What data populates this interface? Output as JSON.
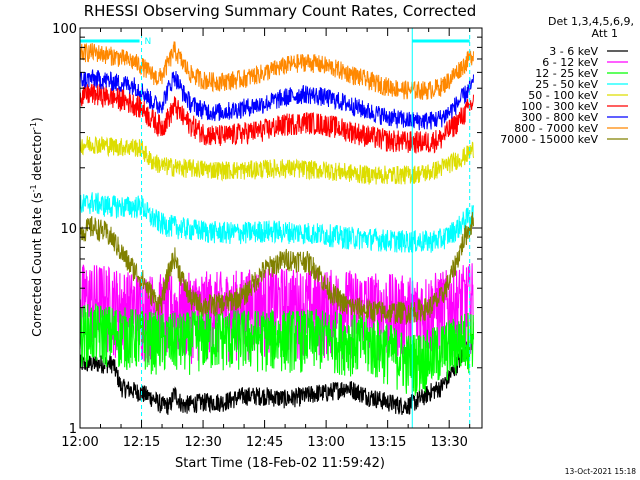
{
  "chart_data": {
    "type": "line",
    "title": "RHESSI Observing Summary Count Rates, Corrected",
    "xlabel": "Start Time (18-Feb-02 11:59:42)",
    "ylabel_main": "Corrected Count Rate (s",
    "ylabel_sup1": "-1",
    "ylabel_mid": " detector",
    "ylabel_sup2": "-1",
    "ylabel_end": ")",
    "yscale": "log",
    "ylim": [
      1,
      100
    ],
    "x_ticks": [
      "12:00",
      "12:15",
      "12:30",
      "12:45",
      "13:00",
      "13:15",
      "13:30"
    ],
    "x_tick_minutes": [
      0,
      15,
      30,
      45,
      60,
      75,
      90
    ],
    "xlim_minutes": [
      0,
      98
    ],
    "y_ticks": [
      "1",
      "10",
      "100"
    ],
    "y_tick_values": [
      1,
      10,
      100
    ],
    "legend_title_1": "Det 1,3,4,5,6,9,",
    "legend_title_2": "Att 1",
    "legend_position": "right",
    "timestamp": "13-Oct-2021 15:18",
    "night_marker": "N",
    "vertical_markers_minutes": [
      15,
      81,
      95
    ],
    "series": [
      {
        "name": "3 - 6 keV",
        "color": "#000000",
        "x": [
          0,
          8,
          10,
          15,
          18,
          20,
          22,
          23,
          25,
          30,
          35,
          40,
          45,
          50,
          55,
          58,
          60,
          65,
          70,
          75,
          78,
          80,
          83,
          85,
          88,
          90,
          92,
          95,
          96
        ],
        "y": [
          2.1,
          2.1,
          1.6,
          1.5,
          1.4,
          1.3,
          1.3,
          1.5,
          1.3,
          1.35,
          1.35,
          1.45,
          1.45,
          1.4,
          1.45,
          1.5,
          1.5,
          1.6,
          1.45,
          1.35,
          1.3,
          1.3,
          1.4,
          1.5,
          1.6,
          1.8,
          2.1,
          2.6,
          2.8
        ]
      },
      {
        "name": "6 - 12 keV",
        "color": "#ff00ff",
        "x": [
          0,
          5,
          10,
          15,
          20,
          25,
          30,
          35,
          40,
          45,
          50,
          55,
          60,
          65,
          70,
          75,
          80,
          85,
          90,
          95,
          96
        ],
        "y": [
          4.5,
          4.5,
          4.2,
          4.0,
          4.0,
          4.0,
          4.1,
          4.1,
          4.2,
          4.3,
          4.3,
          4.2,
          4.2,
          4.2,
          4.1,
          4.0,
          3.9,
          4.0,
          4.2,
          4.5,
          4.6
        ]
      },
      {
        "name": "12 - 25 keV",
        "color": "#00ff00",
        "x": [
          0,
          5,
          10,
          15,
          20,
          25,
          30,
          35,
          40,
          45,
          50,
          55,
          60,
          65,
          70,
          75,
          80,
          85,
          90,
          95,
          96
        ],
        "y": [
          3.1,
          3.1,
          3.0,
          2.9,
          2.8,
          2.8,
          2.9,
          2.9,
          2.9,
          2.9,
          2.9,
          2.9,
          2.9,
          2.8,
          2.7,
          2.5,
          2.2,
          2.3,
          2.6,
          2.9,
          3.0
        ]
      },
      {
        "name": "25 - 50 keV",
        "color": "#00ffff",
        "x": [
          0,
          3,
          6,
          10,
          13,
          15,
          17,
          20,
          25,
          30,
          35,
          40,
          45,
          50,
          55,
          60,
          65,
          70,
          75,
          80,
          85,
          88,
          90,
          92,
          94,
          96
        ],
        "y": [
          13,
          13.5,
          13,
          12.8,
          12.8,
          13,
          11.5,
          10.5,
          10,
          9.7,
          9.5,
          9.5,
          9.7,
          9.6,
          9.5,
          9.3,
          9,
          8.9,
          8.7,
          8.6,
          8.6,
          8.8,
          9.3,
          10,
          11,
          12
        ]
      },
      {
        "name": "50 - 100 keV",
        "color": "#dddd00",
        "x": [
          0,
          3,
          6,
          10,
          13,
          15,
          17,
          20,
          25,
          30,
          35,
          40,
          45,
          50,
          55,
          60,
          65,
          70,
          75,
          80,
          85,
          88,
          90,
          92,
          94,
          96
        ],
        "y": [
          26,
          26.5,
          26,
          25.5,
          25.5,
          25,
          22,
          20.5,
          20,
          19.8,
          19.5,
          19.5,
          19.8,
          20,
          19.7,
          19.5,
          19,
          18.5,
          18.5,
          18.5,
          19,
          20,
          21,
          22,
          23,
          25
        ]
      },
      {
        "name": "100 - 300 keV",
        "color": "#ff0000",
        "x": [
          0,
          3,
          6,
          10,
          13,
          15,
          17,
          19,
          20,
          22,
          23,
          25,
          27,
          30,
          33,
          36,
          40,
          45,
          50,
          55,
          60,
          65,
          70,
          75,
          80,
          85,
          88,
          90,
          92,
          94,
          96
        ],
        "y": [
          46,
          47,
          46,
          44,
          42,
          40,
          36,
          33,
          32,
          37,
          41,
          36,
          33,
          30,
          29,
          29,
          30,
          31,
          33,
          34,
          33,
          31,
          29,
          27.5,
          27,
          27,
          28,
          31,
          34,
          38,
          43
        ]
      },
      {
        "name": "300 - 800 keV",
        "color": "#0000ff",
        "x": [
          0,
          3,
          6,
          10,
          13,
          15,
          17,
          19,
          20,
          22,
          23,
          25,
          27,
          30,
          33,
          36,
          40,
          45,
          50,
          55,
          60,
          65,
          70,
          75,
          80,
          85,
          88,
          90,
          92,
          94,
          96
        ],
        "y": [
          55,
          56,
          55,
          53,
          52,
          49,
          44,
          41,
          42,
          52,
          58,
          48,
          42,
          39,
          38,
          38.5,
          40,
          42,
          45,
          47,
          45,
          42,
          38.5,
          36,
          34.5,
          34.5,
          35.5,
          38,
          42,
          47,
          53
        ]
      },
      {
        "name": "800 - 7000 keV",
        "color": "#ff8800",
        "x": [
          0,
          3,
          6,
          10,
          13,
          15,
          17,
          19,
          20,
          22,
          23,
          25,
          27,
          30,
          33,
          36,
          40,
          45,
          50,
          55,
          60,
          65,
          70,
          75,
          80,
          85,
          88,
          90,
          92,
          94,
          96
        ],
        "y": [
          75,
          76,
          74,
          71,
          68,
          65,
          60,
          56,
          58,
          70,
          78,
          67,
          59,
          55,
          54,
          54.5,
          56,
          60,
          65,
          68,
          65,
          60,
          55,
          51,
          49,
          49,
          51,
          55,
          61,
          67,
          75
        ]
      },
      {
        "name": "7000 - 15000 keV",
        "color": "#808000",
        "x": [
          0,
          3,
          6,
          8,
          10,
          12,
          15,
          17,
          19,
          20,
          22,
          23,
          25,
          27,
          30,
          35,
          40,
          45,
          50,
          55,
          58,
          60,
          62,
          65,
          70,
          75,
          80,
          85,
          88,
          90,
          92,
          94,
          96
        ],
        "y": [
          9.5,
          10.2,
          9.6,
          8.8,
          7.6,
          6.6,
          5.6,
          4.8,
          4.2,
          4.3,
          6.4,
          7.2,
          5.5,
          4.4,
          4.1,
          4.2,
          4.6,
          6.2,
          7.0,
          6.9,
          6.1,
          5.1,
          4.6,
          4.1,
          3.9,
          3.8,
          3.8,
          4.0,
          4.5,
          5.4,
          7.0,
          9.2,
          11.0
        ]
      }
    ]
  }
}
